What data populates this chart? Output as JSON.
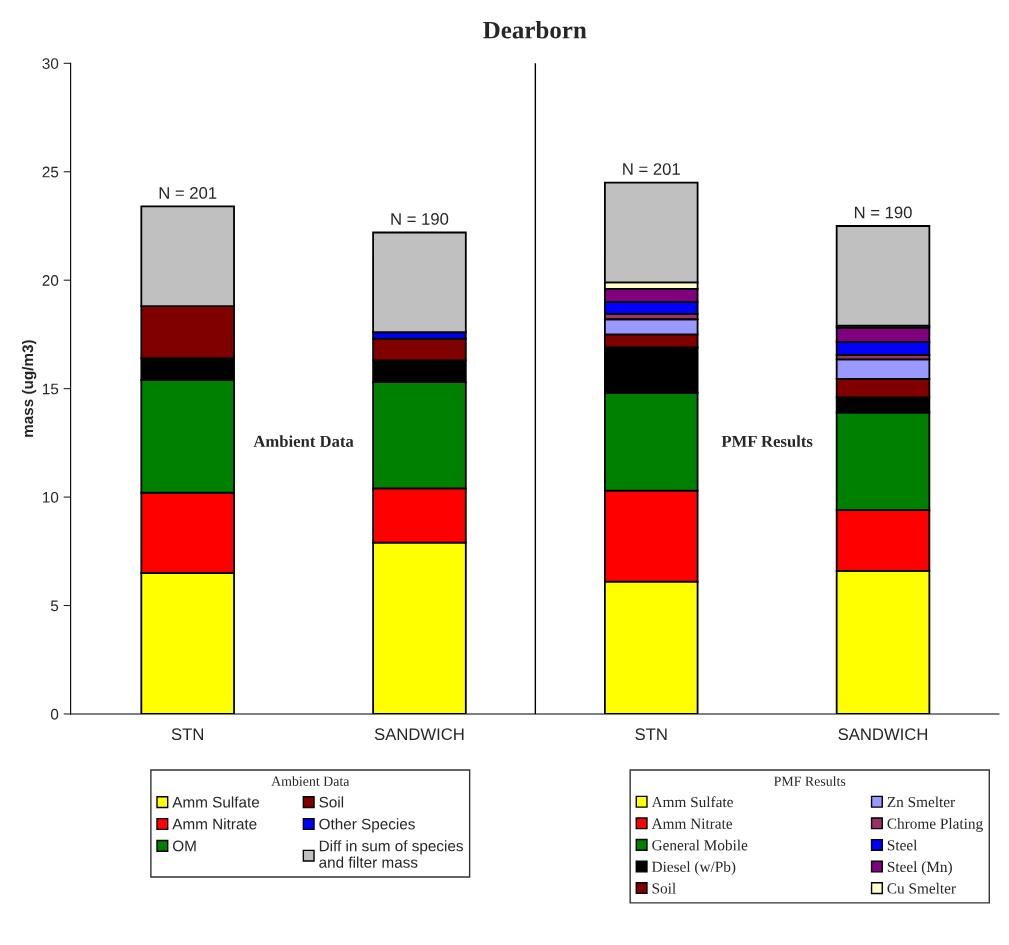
{
  "chart_data": {
    "type": "bar",
    "stacked": true,
    "title": "Dearborn",
    "ylabel": "mass (ug/m3)",
    "categories": [
      "STN",
      "SANDWICH",
      "STN",
      "SANDWICH"
    ],
    "ylim": [
      0,
      30
    ],
    "yticks": [
      0,
      5,
      10,
      15,
      20,
      25,
      30
    ],
    "grid": false,
    "legend": "bottom",
    "legend_title": [
      "Ambient Data",
      "PMF Results"
    ],
    "annotations": [
      "Ambient Data",
      "PMF Results",
      "N = 201",
      "N = 190",
      "N = 201",
      "N = 190"
    ],
    "series": [
      {
        "name": "Amm Sulfate",
        "color": "#ffff00",
        "values": [
          6.5,
          7.9,
          null,
          null
        ]
      },
      {
        "name": "Amm Nitrate",
        "color": "#ff0000",
        "values": [
          3.7,
          2.5,
          null,
          null
        ]
      },
      {
        "name": "OM",
        "color": "#008000",
        "values": [
          5.2,
          4.9,
          null,
          null
        ]
      },
      {
        "color": "#000000",
        "values": [
          1.0,
          1.0,
          null,
          null
        ]
      },
      {
        "name": "Soil",
        "color": "#800000",
        "values": [
          2.4,
          1.0,
          null,
          null
        ]
      },
      {
        "name": "Other Species",
        "color": "#0000ff",
        "values": [
          0,
          0.3,
          null,
          null
        ]
      },
      {
        "name": "Diff in sum of species\nand filter mass",
        "color": "#c0c0c0",
        "values": [
          4.6,
          4.6,
          null,
          null
        ]
      },
      {
        "name": "Amm Sulfate",
        "color": "#ffff00",
        "values": [
          null,
          null,
          6.1,
          6.6
        ]
      },
      {
        "name": "Amm Nitrate",
        "color": "#ff0000",
        "values": [
          null,
          null,
          4.2,
          2.8
        ]
      },
      {
        "name": "General Mobile",
        "color": "#008000",
        "values": [
          null,
          null,
          4.5,
          4.5
        ]
      },
      {
        "name": "Diesel (w/Pb)",
        "color": "#000000",
        "values": [
          null,
          null,
          2.1,
          0.7
        ]
      },
      {
        "name": "Soil",
        "color": "#800000",
        "values": [
          null,
          null,
          0.6,
          0.85
        ]
      },
      {
        "name": "Zn Smelter",
        "color": "#9999ff",
        "values": [
          null,
          null,
          0.7,
          0.9
        ]
      },
      {
        "name": "Chrome Plating",
        "color": "#993366",
        "values": [
          null,
          null,
          0.25,
          0.2
        ]
      },
      {
        "name": "Steel",
        "color": "#0000ff",
        "values": [
          null,
          null,
          0.55,
          0.6
        ]
      },
      {
        "name": "Steel (Mn)",
        "color": "#800080",
        "values": [
          null,
          null,
          0.6,
          0.65
        ]
      },
      {
        "name": "Cu Smelter",
        "color": "#ffffcc",
        "values": [
          null,
          null,
          0.3,
          0.1
        ]
      },
      {
        "color": "#c0c0c0",
        "values": [
          null,
          null,
          4.6,
          4.6
        ]
      }
    ]
  }
}
